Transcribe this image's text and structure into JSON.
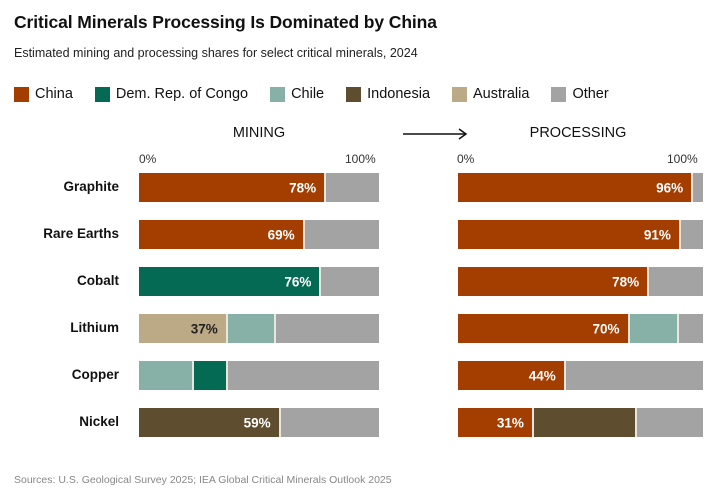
{
  "title": "Critical Minerals Processing Is Dominated by China",
  "subtitle": "Estimated mining and processing shares for select critical minerals, 2024",
  "source": "Sources:  U.S. Geological Survey 2025; IEA Global Critical Minerals Outlook 2025",
  "legend": [
    {
      "name": "China",
      "color": "#a33d00"
    },
    {
      "name": "Dem. Rep. of Congo",
      "color": "#046a53"
    },
    {
      "name": "Chile",
      "color": "#87b0a6"
    },
    {
      "name": "Indonesia",
      "color": "#5e4e2f"
    },
    {
      "name": "Australia",
      "color": "#bca985"
    },
    {
      "name": "Other",
      "color": "#a3a3a3"
    }
  ],
  "chart_data": [
    {
      "type": "bar",
      "orientation": "horizontal",
      "stacked": true,
      "title": "MINING",
      "categories": [
        "Graphite",
        "Rare Earths",
        "Cobalt",
        "Lithium",
        "Copper",
        "Nickel"
      ],
      "xlim": [
        0,
        100
      ],
      "xticks": [
        "0%",
        "100%"
      ],
      "rows": [
        {
          "category": "Graphite",
          "segments": [
            {
              "series": "China",
              "value": 78,
              "label": "78%"
            },
            {
              "series": "Other",
              "value": 22
            }
          ]
        },
        {
          "category": "Rare Earths",
          "segments": [
            {
              "series": "China",
              "value": 69,
              "label": "69%"
            },
            {
              "series": "Other",
              "value": 31
            }
          ]
        },
        {
          "category": "Cobalt",
          "segments": [
            {
              "series": "Dem. Rep. of Congo",
              "value": 76,
              "label": "76%"
            },
            {
              "series": "Other",
              "value": 24
            }
          ]
        },
        {
          "category": "Lithium",
          "segments": [
            {
              "series": "Australia",
              "value": 37,
              "label": "37%"
            },
            {
              "series": "Chile",
              "value": 20
            },
            {
              "series": "Other",
              "value": 43
            }
          ]
        },
        {
          "category": "Copper",
          "segments": [
            {
              "series": "Chile",
              "value": 23
            },
            {
              "series": "Dem. Rep. of Congo",
              "value": 14
            },
            {
              "series": "Other",
              "value": 63
            }
          ]
        },
        {
          "category": "Nickel",
          "segments": [
            {
              "series": "Indonesia",
              "value": 59,
              "label": "59%"
            },
            {
              "series": "Other",
              "value": 41
            }
          ]
        }
      ]
    },
    {
      "type": "bar",
      "orientation": "horizontal",
      "stacked": true,
      "title": "PROCESSING",
      "categories": [
        "Graphite",
        "Rare Earths",
        "Cobalt",
        "Lithium",
        "Copper",
        "Nickel"
      ],
      "xlim": [
        0,
        100
      ],
      "xticks": [
        "0%",
        "100%"
      ],
      "rows": [
        {
          "category": "Graphite",
          "segments": [
            {
              "series": "China",
              "value": 96,
              "label": "96%"
            },
            {
              "series": "Other",
              "value": 4
            }
          ]
        },
        {
          "category": "Rare Earths",
          "segments": [
            {
              "series": "China",
              "value": 91,
              "label": "91%"
            },
            {
              "series": "Other",
              "value": 9
            }
          ]
        },
        {
          "category": "Cobalt",
          "segments": [
            {
              "series": "China",
              "value": 78,
              "label": "78%"
            },
            {
              "series": "Other",
              "value": 22
            }
          ]
        },
        {
          "category": "Lithium",
          "segments": [
            {
              "series": "China",
              "value": 70,
              "label": "70%"
            },
            {
              "series": "Chile",
              "value": 20
            },
            {
              "series": "Other",
              "value": 10
            }
          ]
        },
        {
          "category": "Copper",
          "segments": [
            {
              "series": "China",
              "value": 44,
              "label": "44%"
            },
            {
              "series": "Other",
              "value": 56
            }
          ]
        },
        {
          "category": "Nickel",
          "segments": [
            {
              "series": "China",
              "value": 31,
              "label": "31%"
            },
            {
              "series": "Indonesia",
              "value": 42
            },
            {
              "series": "Other",
              "value": 27
            }
          ]
        }
      ]
    }
  ]
}
